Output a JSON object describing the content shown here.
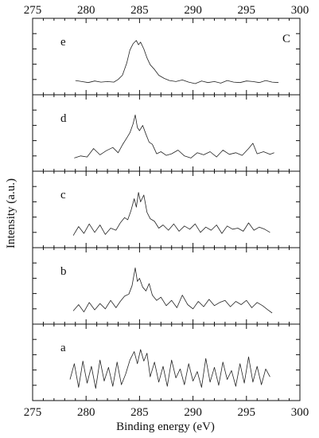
{
  "chart_data": {
    "type": "line",
    "xlabel": "Binding energy (eV)",
    "ylabel": "Intensity (a.u.)",
    "xlim": [
      275,
      300
    ],
    "x_ticks": [
      275,
      280,
      285,
      290,
      295,
      300
    ],
    "annotation": "C",
    "panels": [
      {
        "label": "e",
        "x": [
          279.0,
          279.6,
          280.2,
          280.8,
          281.4,
          282.0,
          282.6,
          283.0,
          283.4,
          283.8,
          284.1,
          284.4,
          284.7,
          284.9,
          285.1,
          285.4,
          285.7,
          286.0,
          286.4,
          286.8,
          287.3,
          287.8,
          288.4,
          289.0,
          289.6,
          290.2,
          290.8,
          291.4,
          292.0,
          292.6,
          293.2,
          293.8,
          294.4,
          295.0,
          295.6,
          296.2,
          296.8,
          297.4,
          298.0
        ],
        "y": [
          0.12,
          0.1,
          0.08,
          0.11,
          0.09,
          0.1,
          0.09,
          0.14,
          0.22,
          0.45,
          0.7,
          0.82,
          0.88,
          0.8,
          0.85,
          0.72,
          0.55,
          0.42,
          0.33,
          0.22,
          0.16,
          0.12,
          0.1,
          0.13,
          0.09,
          0.06,
          0.11,
          0.08,
          0.1,
          0.07,
          0.12,
          0.09,
          0.08,
          0.11,
          0.1,
          0.08,
          0.12,
          0.09,
          0.08
        ]
      },
      {
        "label": "d",
        "x": [
          278.9,
          279.5,
          280.1,
          280.7,
          281.3,
          281.9,
          282.5,
          283.0,
          283.4,
          283.8,
          284.1,
          284.4,
          284.6,
          284.8,
          285.0,
          285.3,
          285.6,
          285.9,
          286.2,
          286.6,
          287.0,
          287.5,
          288.0,
          288.6,
          289.2,
          289.8,
          290.4,
          291.0,
          291.6,
          292.2,
          292.8,
          293.4,
          294.0,
          294.6,
          295.2,
          295.6,
          296.0,
          296.6,
          297.2,
          297.6
        ],
        "y": [
          0.1,
          0.14,
          0.12,
          0.28,
          0.16,
          0.24,
          0.3,
          0.2,
          0.35,
          0.48,
          0.58,
          0.75,
          0.92,
          0.68,
          0.62,
          0.72,
          0.55,
          0.4,
          0.36,
          0.18,
          0.22,
          0.15,
          0.18,
          0.25,
          0.14,
          0.1,
          0.2,
          0.16,
          0.22,
          0.12,
          0.25,
          0.17,
          0.2,
          0.15,
          0.28,
          0.38,
          0.18,
          0.22,
          0.17,
          0.2
        ]
      },
      {
        "label": "c",
        "x": [
          278.8,
          279.3,
          279.8,
          280.3,
          280.8,
          281.3,
          281.8,
          282.3,
          282.8,
          283.2,
          283.6,
          283.9,
          284.2,
          284.5,
          284.7,
          284.9,
          285.1,
          285.4,
          285.7,
          286.0,
          286.4,
          286.8,
          287.2,
          287.7,
          288.2,
          288.7,
          289.2,
          289.7,
          290.2,
          290.7,
          291.2,
          291.7,
          292.2,
          292.7,
          293.2,
          293.7,
          294.2,
          294.7,
          295.2,
          295.7,
          296.2,
          296.7,
          297.2
        ],
        "y": [
          0.08,
          0.25,
          0.12,
          0.3,
          0.14,
          0.28,
          0.1,
          0.22,
          0.18,
          0.32,
          0.42,
          0.38,
          0.55,
          0.78,
          0.62,
          0.9,
          0.72,
          0.85,
          0.52,
          0.4,
          0.35,
          0.22,
          0.28,
          0.18,
          0.3,
          0.16,
          0.26,
          0.2,
          0.3,
          0.14,
          0.24,
          0.18,
          0.28,
          0.12,
          0.26,
          0.2,
          0.22,
          0.16,
          0.32,
          0.18,
          0.24,
          0.2,
          0.14
        ]
      },
      {
        "label": "b",
        "x": [
          278.8,
          279.3,
          279.8,
          280.3,
          280.8,
          281.3,
          281.8,
          282.3,
          282.8,
          283.2,
          283.6,
          284.0,
          284.3,
          284.6,
          284.8,
          285.0,
          285.3,
          285.6,
          285.9,
          286.2,
          286.6,
          287.0,
          287.5,
          288.0,
          288.5,
          289.0,
          289.5,
          290.0,
          290.5,
          291.0,
          291.5,
          292.0,
          292.5,
          293.0,
          293.5,
          294.0,
          294.5,
          295.0,
          295.5,
          296.0,
          296.5,
          297.0,
          297.4
        ],
        "y": [
          0.1,
          0.22,
          0.08,
          0.26,
          0.12,
          0.24,
          0.14,
          0.3,
          0.16,
          0.28,
          0.38,
          0.42,
          0.58,
          0.92,
          0.66,
          0.72,
          0.55,
          0.48,
          0.62,
          0.4,
          0.3,
          0.36,
          0.2,
          0.3,
          0.16,
          0.4,
          0.22,
          0.14,
          0.28,
          0.18,
          0.32,
          0.2,
          0.26,
          0.3,
          0.18,
          0.28,
          0.22,
          0.3,
          0.16,
          0.26,
          0.2,
          0.12,
          0.06
        ]
      },
      {
        "label": "a",
        "x": [
          278.5,
          278.9,
          279.3,
          279.7,
          280.1,
          280.5,
          280.9,
          281.3,
          281.7,
          282.1,
          282.5,
          282.9,
          283.3,
          283.7,
          284.1,
          284.5,
          284.8,
          285.1,
          285.4,
          285.7,
          286.0,
          286.4,
          286.8,
          287.2,
          287.6,
          288.0,
          288.4,
          288.8,
          289.2,
          289.6,
          290.0,
          290.4,
          290.8,
          291.2,
          291.6,
          292.0,
          292.4,
          292.8,
          293.2,
          293.6,
          294.0,
          294.4,
          294.8,
          295.2,
          295.6,
          296.0,
          296.4,
          296.8,
          297.2
        ],
        "y": [
          0.25,
          0.55,
          0.1,
          0.6,
          0.18,
          0.5,
          0.08,
          0.62,
          0.22,
          0.48,
          0.12,
          0.58,
          0.15,
          0.35,
          0.62,
          0.78,
          0.55,
          0.82,
          0.6,
          0.75,
          0.3,
          0.58,
          0.2,
          0.5,
          0.12,
          0.62,
          0.28,
          0.45,
          0.15,
          0.55,
          0.22,
          0.4,
          0.1,
          0.65,
          0.2,
          0.48,
          0.14,
          0.58,
          0.25,
          0.42,
          0.12,
          0.55,
          0.18,
          0.68,
          0.2,
          0.5,
          0.15,
          0.45,
          0.3
        ]
      }
    ]
  }
}
